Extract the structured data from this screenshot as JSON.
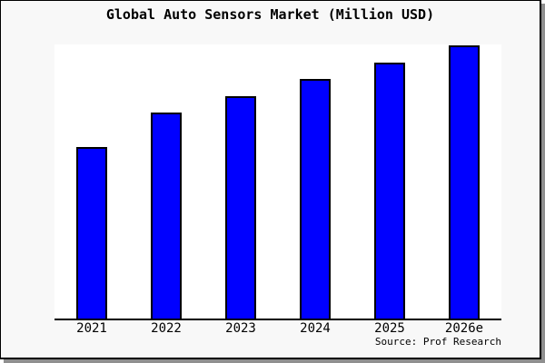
{
  "title": "Global Auto Sensors Market (Million USD)",
  "source": "Source: Prof Research",
  "colors": {
    "bar_fill": "#0000ff",
    "bar_border": "#000000",
    "plot_background": "#ffffff",
    "outer_background": "#f8f8f8",
    "axis_line": "#000000",
    "frame_border": "#000000",
    "frame_shadow": "#8f8f8f",
    "text": "#000000"
  },
  "chart_data": {
    "type": "bar",
    "title": "Global Auto Sensors Market (Million USD)",
    "categories": [
      "2021",
      "2022",
      "2023",
      "2024",
      "2025",
      "2026e"
    ],
    "values": [
      62.6,
      75.2,
      81.1,
      87.4,
      93.4,
      99.7
    ],
    "xlabel": "",
    "ylabel": "",
    "ylim": [
      0,
      100
    ],
    "y_axis_labeled": false,
    "grid": false,
    "legend": false,
    "annotation": "Source: Prof Research"
  }
}
